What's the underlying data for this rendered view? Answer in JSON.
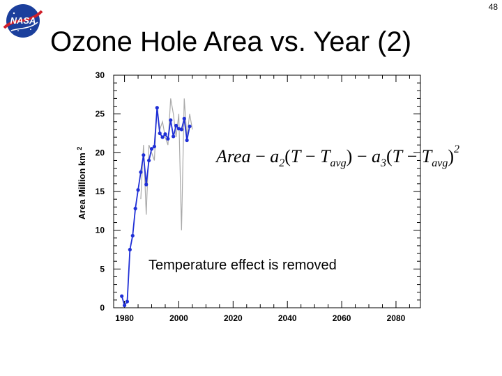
{
  "slide_number": "48",
  "title": "Ozone Hole Area vs. Year (2)",
  "logo": {
    "text": "NASA",
    "icon": "nasa-meatball-logo"
  },
  "chart_data": {
    "type": "line",
    "title": "",
    "xlabel": "",
    "ylabel": "Area Million km",
    "ylabel_superscript": "2",
    "xlim": [
      1976,
      2089
    ],
    "ylim": [
      0,
      30
    ],
    "xticks": [
      1980,
      2000,
      2020,
      2040,
      2060,
      2080
    ],
    "yticks": [
      0,
      5,
      10,
      15,
      20,
      25,
      30
    ],
    "grid": false,
    "annotation": "Temperature effect is removed",
    "formula": "Area − a2(T − Tavg) − a3(T − Tavg)^2",
    "series": [
      {
        "color": "#1f2fd6",
        "marker": "circle",
        "x": [
          1979,
          1980,
          1981,
          1982,
          1983,
          1984,
          1985,
          1986,
          1987,
          1988,
          1989,
          1990,
          1991,
          1992,
          1993,
          1994,
          1995,
          1996,
          1997,
          1998,
          1999,
          2000,
          2001,
          2002,
          2003,
          2004,
          2005
        ],
        "y": [
          1.5,
          0.3,
          0.8,
          7.5,
          9.3,
          12.8,
          15.2,
          17.5,
          19.7,
          15.9,
          19.0,
          20.5,
          20.8,
          25.8,
          22.5,
          22.0,
          22.4,
          21.8,
          24.2,
          22.1,
          23.5,
          23.1,
          23.0,
          24.4,
          21.6,
          23.4,
          null
        ]
      },
      {
        "color": "#a9a9a9",
        "marker": "none",
        "x": [
          1986,
          1987,
          1988,
          1989,
          1990,
          1991,
          1992,
          1993,
          1994,
          1995,
          1996,
          1997,
          1998,
          1999,
          2000,
          2001,
          2002,
          2003,
          2004,
          2005
        ],
        "y": [
          14,
          21,
          12,
          21,
          20,
          19,
          26,
          23,
          24,
          22,
          21,
          27,
          25,
          22,
          25,
          10,
          27,
          22,
          25,
          23
        ]
      }
    ]
  }
}
